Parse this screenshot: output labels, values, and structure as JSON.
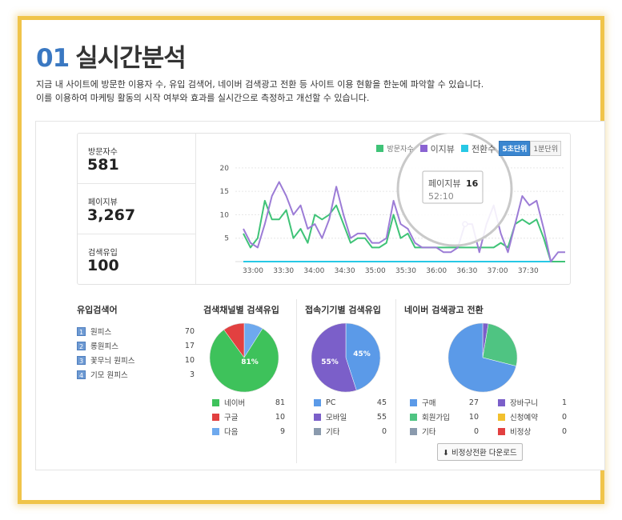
{
  "title": {
    "num": "01",
    "text": "실시간분석"
  },
  "description": [
    "지금 내 사이트에 방문한 이용자 수, 유입 검색어, 네이버 검색광고 전환 등 사이트 이용 현황을 한눈에 파악할 수 있습니다.",
    "이를 이용하여 마케팅 활동의 시작 여부와 효과를 실시간으로 측정하고 개선할 수 있습니다."
  ],
  "stats": [
    {
      "label": "방문자수",
      "value": "581"
    },
    {
      "label": "페이지뷰",
      "value": "3,267"
    },
    {
      "label": "검색유입",
      "value": "100"
    }
  ],
  "legend": {
    "visitors": "방문자수",
    "pageview": "이지뷰",
    "conversion": "전환수"
  },
  "interval_buttons": {
    "five_sec": "5초단위",
    "one_min": "1분단위"
  },
  "tooltip": {
    "label": "페이지뷰",
    "value": "16",
    "time": "52:10"
  },
  "colors": {
    "visitors": "#3fc377",
    "pageview": "#9c7cd6",
    "conversion": "#27c8e5",
    "accent": "#3a78c2",
    "frame": "#f0c44a"
  },
  "chart_data": {
    "type": "line",
    "x_ticks": [
      "33:00",
      "33:30",
      "34:00",
      "34:30",
      "35:00",
      "35:30",
      "36:00",
      "36:30",
      "37:00",
      "37:30"
    ],
    "y_ticks": [
      5,
      10,
      15,
      20
    ],
    "ylim": [
      0,
      21
    ],
    "series": [
      {
        "name": "방문자수",
        "values": [
          6,
          3,
          5,
          13,
          9,
          9,
          11,
          5,
          7,
          4,
          10,
          9,
          10,
          12,
          8,
          4,
          5,
          5,
          3,
          3,
          4,
          10,
          5,
          6,
          3,
          3,
          3,
          3,
          3,
          3,
          3,
          3,
          3,
          3,
          3,
          3,
          4,
          3,
          8,
          9,
          8,
          9,
          5,
          0,
          0,
          0
        ]
      },
      {
        "name": "이지뷰",
        "values": [
          7,
          4,
          3,
          8,
          14,
          17,
          14,
          10,
          12,
          7,
          8,
          5,
          9,
          16,
          10,
          5,
          6,
          6,
          4,
          4,
          5,
          13,
          8,
          7,
          4,
          3,
          3,
          3,
          2,
          2,
          3,
          8,
          8,
          2,
          8,
          12,
          6,
          2,
          8,
          14,
          12,
          13,
          7,
          0,
          2,
          2
        ]
      },
      {
        "name": "전환수",
        "values": [
          0,
          0,
          0,
          0,
          0,
          0,
          0,
          0,
          0,
          0,
          0,
          0,
          0,
          0,
          0,
          0,
          0,
          0,
          0,
          0,
          0,
          0,
          0,
          0,
          0,
          0,
          0,
          0,
          0,
          0,
          0,
          0,
          0,
          0,
          0,
          0,
          0,
          0,
          0,
          0,
          0,
          0,
          0,
          0,
          0,
          0
        ]
      }
    ]
  },
  "keywords": {
    "title": "유입검색어",
    "items": [
      {
        "rank": "1",
        "name": "원피스",
        "count": "70"
      },
      {
        "rank": "2",
        "name": "롱원피스",
        "count": "17"
      },
      {
        "rank": "3",
        "name": "꽃무늬 원피스",
        "count": "10"
      },
      {
        "rank": "4",
        "name": "기모 원피스",
        "count": "3"
      }
    ]
  },
  "channel": {
    "title": "검색채널별 검색유입",
    "pie_label": "81%",
    "items": [
      {
        "name": "네이버",
        "count": "81",
        "color": "#3ec25b"
      },
      {
        "name": "구글",
        "count": "10",
        "color": "#e24040"
      },
      {
        "name": "다음",
        "count": "9",
        "color": "#6ea9ee"
      }
    ]
  },
  "device": {
    "title": "접속기기별 검색유입",
    "pie_labels": [
      "45%",
      "55%"
    ],
    "items": [
      {
        "name": "PC",
        "count": "45",
        "color": "#5b9ae8"
      },
      {
        "name": "모바일",
        "count": "55",
        "color": "#7b5fc9"
      },
      {
        "name": "기타",
        "count": "0",
        "color": "#8a9aad"
      }
    ]
  },
  "conversion": {
    "title": "네이버 검색광고 전환",
    "items_left": [
      {
        "name": "구매",
        "count": "27",
        "color": "#5b9ae8"
      },
      {
        "name": "회원가입",
        "count": "10",
        "color": "#4fc482"
      },
      {
        "name": "기타",
        "count": "0",
        "color": "#8a9aad"
      }
    ],
    "items_right": [
      {
        "name": "장바구니",
        "count": "1",
        "color": "#7b5fc9"
      },
      {
        "name": "신청예약",
        "count": "0",
        "color": "#f2c02e"
      },
      {
        "name": "비정상",
        "count": "0",
        "color": "#e24040"
      }
    ],
    "download_label": "비정상전환 다운로드"
  }
}
